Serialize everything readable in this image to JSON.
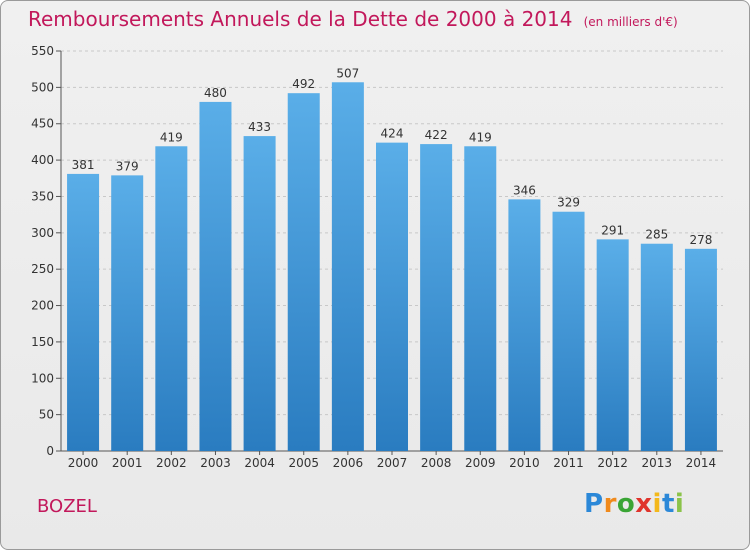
{
  "title": "Remboursements Annuels de la Dette de 2000 à 2014",
  "unit_note": "(en milliers d'€)",
  "commune": "BOZEL",
  "logo": {
    "letters": [
      "P",
      "r",
      "o",
      "x",
      "i",
      "t",
      "i"
    ],
    "colors": [
      "#2b88d8",
      "#f08a1c",
      "#3aa535",
      "#e0342c",
      "#f3b81b",
      "#2b88d8",
      "#8bc34a"
    ]
  },
  "colors": {
    "bar_top": "#5aaee8",
    "bar_bottom": "#2a7cc0",
    "title": "#c2185b"
  },
  "chart_data": {
    "type": "bar",
    "categories": [
      "2000",
      "2001",
      "2002",
      "2003",
      "2004",
      "2005",
      "2006",
      "2007",
      "2008",
      "2009",
      "2010",
      "2011",
      "2012",
      "2013",
      "2014"
    ],
    "values": [
      381,
      379,
      419,
      480,
      433,
      492,
      507,
      424,
      422,
      419,
      346,
      329,
      291,
      285,
      278
    ],
    "title": "Remboursements Annuels de la Dette de 2000 à 2014",
    "xlabel": "",
    "ylabel": "",
    "ylim": [
      0,
      550
    ],
    "yticks": [
      0,
      50,
      100,
      150,
      200,
      250,
      300,
      350,
      400,
      450,
      500,
      550
    ],
    "grid": true,
    "data_labels": true
  }
}
